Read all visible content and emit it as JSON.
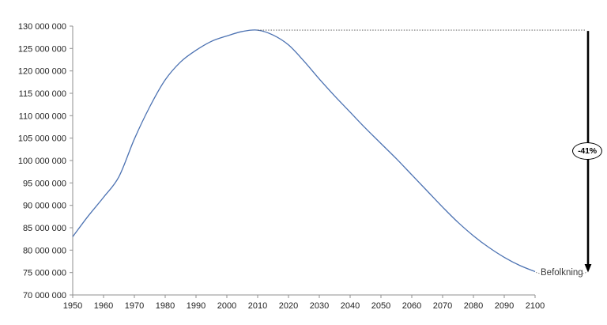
{
  "chart_data": {
    "type": "line",
    "title": "",
    "xlabel": "",
    "ylabel": "",
    "xlim": [
      1950,
      2100
    ],
    "ylim": [
      70000000,
      130000000
    ],
    "grid": false,
    "legend": "none (dotted leader label at line end)",
    "x_ticks": [
      1950,
      1960,
      1970,
      1980,
      1990,
      2000,
      2010,
      2020,
      2030,
      2040,
      2050,
      2060,
      2070,
      2080,
      2090,
      2100
    ],
    "y_ticks": [
      {
        "value": 130000000,
        "label": "130 000 000"
      },
      {
        "value": 125000000,
        "label": "125 000 000"
      },
      {
        "value": 120000000,
        "label": "120 000 000"
      },
      {
        "value": 115000000,
        "label": "115 000 000"
      },
      {
        "value": 110000000,
        "label": "110 000 000"
      },
      {
        "value": 105000000,
        "label": "105 000 000"
      },
      {
        "value": 100000000,
        "label": "100 000 000"
      },
      {
        "value": 95000000,
        "label": "95 000 000"
      },
      {
        "value": 90000000,
        "label": "90 000 000"
      },
      {
        "value": 85000000,
        "label": "85 000 000"
      },
      {
        "value": 80000000,
        "label": "80 000 000"
      },
      {
        "value": 75000000,
        "label": "75 000 000"
      },
      {
        "value": 70000000,
        "label": "70 000 000"
      }
    ],
    "series": [
      {
        "name": "Befolkning",
        "x": [
          1950,
          1955,
          1960,
          1965,
          1970,
          1975,
          1980,
          1985,
          1990,
          1995,
          2000,
          2005,
          2010,
          2015,
          2020,
          2025,
          2030,
          2035,
          2040,
          2045,
          2050,
          2055,
          2060,
          2065,
          2070,
          2075,
          2080,
          2085,
          2090,
          2095,
          2100
        ],
        "values": [
          83000000,
          87600000,
          91800000,
          96400000,
          104800000,
          112000000,
          118000000,
          122000000,
          124600000,
          126600000,
          127800000,
          128800000,
          129100000,
          128000000,
          125800000,
          122200000,
          118200000,
          114400000,
          110800000,
          107200000,
          103800000,
          100400000,
          96800000,
          93200000,
          89600000,
          86200000,
          83200000,
          80600000,
          78400000,
          76600000,
          75200000
        ]
      }
    ],
    "annotations": {
      "percent_badge": "-41%",
      "series_label": "Befolkning",
      "peak_year": 2010,
      "end_year": 2100
    },
    "colors": {
      "line": "#4c72b2",
      "axis": "#8f8f8f",
      "tick_text": "#1f1f1f",
      "annotation": "#000000",
      "dotted": "#4a4a4a"
    }
  }
}
